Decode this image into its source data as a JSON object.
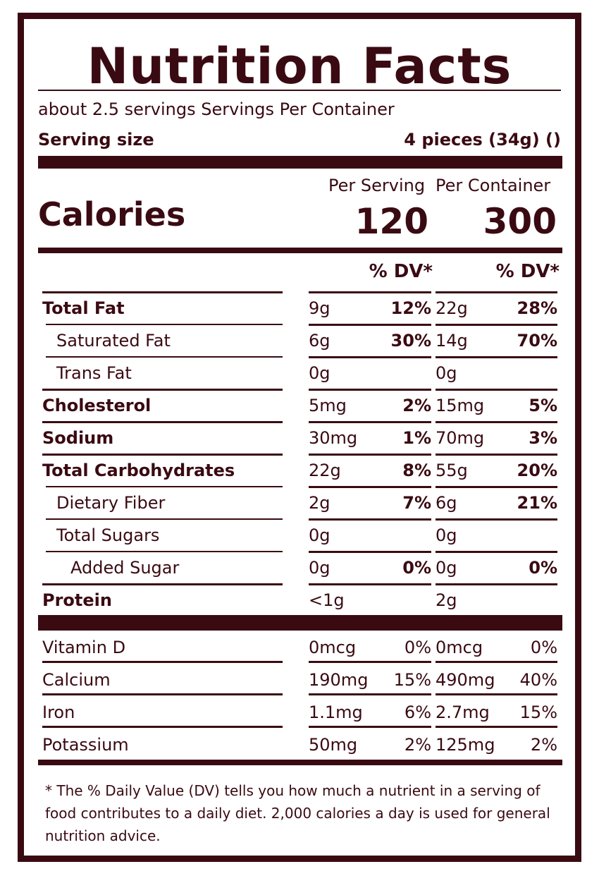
{
  "title": "Nutrition Facts",
  "servings_per_container": "about 2.5 servings Servings Per Container",
  "serving_size_label": "Serving size",
  "serving_size_value": "4 pieces (34g) ()",
  "per_serving_label": "Per Serving",
  "per_container_label": "Per Container",
  "calories_label": "Calories",
  "calories_per_serving": "120",
  "calories_per_container": "300",
  "dv_header_serving": "% DV*",
  "dv_header_container": "% DV*",
  "nutrients": [
    {
      "name": "Total Fat",
      "bold": true,
      "indent": 0,
      "serving_amount": "9g",
      "serving_dv": "12%",
      "container_amount": "22g",
      "container_dv": "28%"
    },
    {
      "name": "Saturated Fat",
      "bold": false,
      "indent": 1,
      "serving_amount": "6g",
      "serving_dv": "30%",
      "container_amount": "14g",
      "container_dv": "70%"
    },
    {
      "name": "Trans Fat",
      "bold": false,
      "indent": 1,
      "serving_amount": "0g",
      "serving_dv": "",
      "container_amount": "0g",
      "container_dv": ""
    },
    {
      "name": "Cholesterol",
      "bold": true,
      "indent": 0,
      "serving_amount": "5mg",
      "serving_dv": "2%",
      "container_amount": "15mg",
      "container_dv": "5%"
    },
    {
      "name": "Sodium",
      "bold": true,
      "indent": 0,
      "serving_amount": "30mg",
      "serving_dv": "1%",
      "container_amount": "70mg",
      "container_dv": "3%"
    },
    {
      "name": "Total Carbohydrates",
      "bold": true,
      "indent": 0,
      "serving_amount": "22g",
      "serving_dv": "8%",
      "container_amount": "55g",
      "container_dv": "20%"
    },
    {
      "name": "Dietary Fiber",
      "bold": false,
      "indent": 1,
      "serving_amount": "2g",
      "serving_dv": "7%",
      "container_amount": "6g",
      "container_dv": "21%"
    },
    {
      "name": "Total Sugars",
      "bold": false,
      "indent": 1,
      "serving_amount": "0g",
      "serving_dv": "",
      "container_amount": "0g",
      "container_dv": ""
    },
    {
      "name": "Added Sugar",
      "bold": false,
      "indent": 2,
      "serving_amount": "0g",
      "serving_dv": "0%",
      "container_amount": "0g",
      "container_dv": "0%"
    },
    {
      "name": "Protein",
      "bold": true,
      "indent": 0,
      "serving_amount": "<1g",
      "serving_dv": "",
      "container_amount": "2g",
      "container_dv": ""
    }
  ],
  "vitamins": [
    {
      "name": "Vitamin D",
      "serving_amount": "0mcg",
      "serving_dv": "0%",
      "container_amount": "0mcg",
      "container_dv": "0%"
    },
    {
      "name": "Calcium",
      "serving_amount": "190mg",
      "serving_dv": "15%",
      "container_amount": "490mg",
      "container_dv": "40%"
    },
    {
      "name": "Iron",
      "serving_amount": "1.1mg",
      "serving_dv": "6%",
      "container_amount": "2.7mg",
      "container_dv": "15%"
    },
    {
      "name": "Potassium",
      "serving_amount": "50mg",
      "serving_dv": "2%",
      "container_amount": "125mg",
      "container_dv": "2%"
    }
  ],
  "footnote": "* The % Daily Value (DV) tells you how much a nutrient in a serving of food contributes to a daily diet. 2,000 calories a day is used for general nutrition advice.",
  "colors": {
    "ink": "#3a0a12",
    "background": "#ffffff"
  }
}
